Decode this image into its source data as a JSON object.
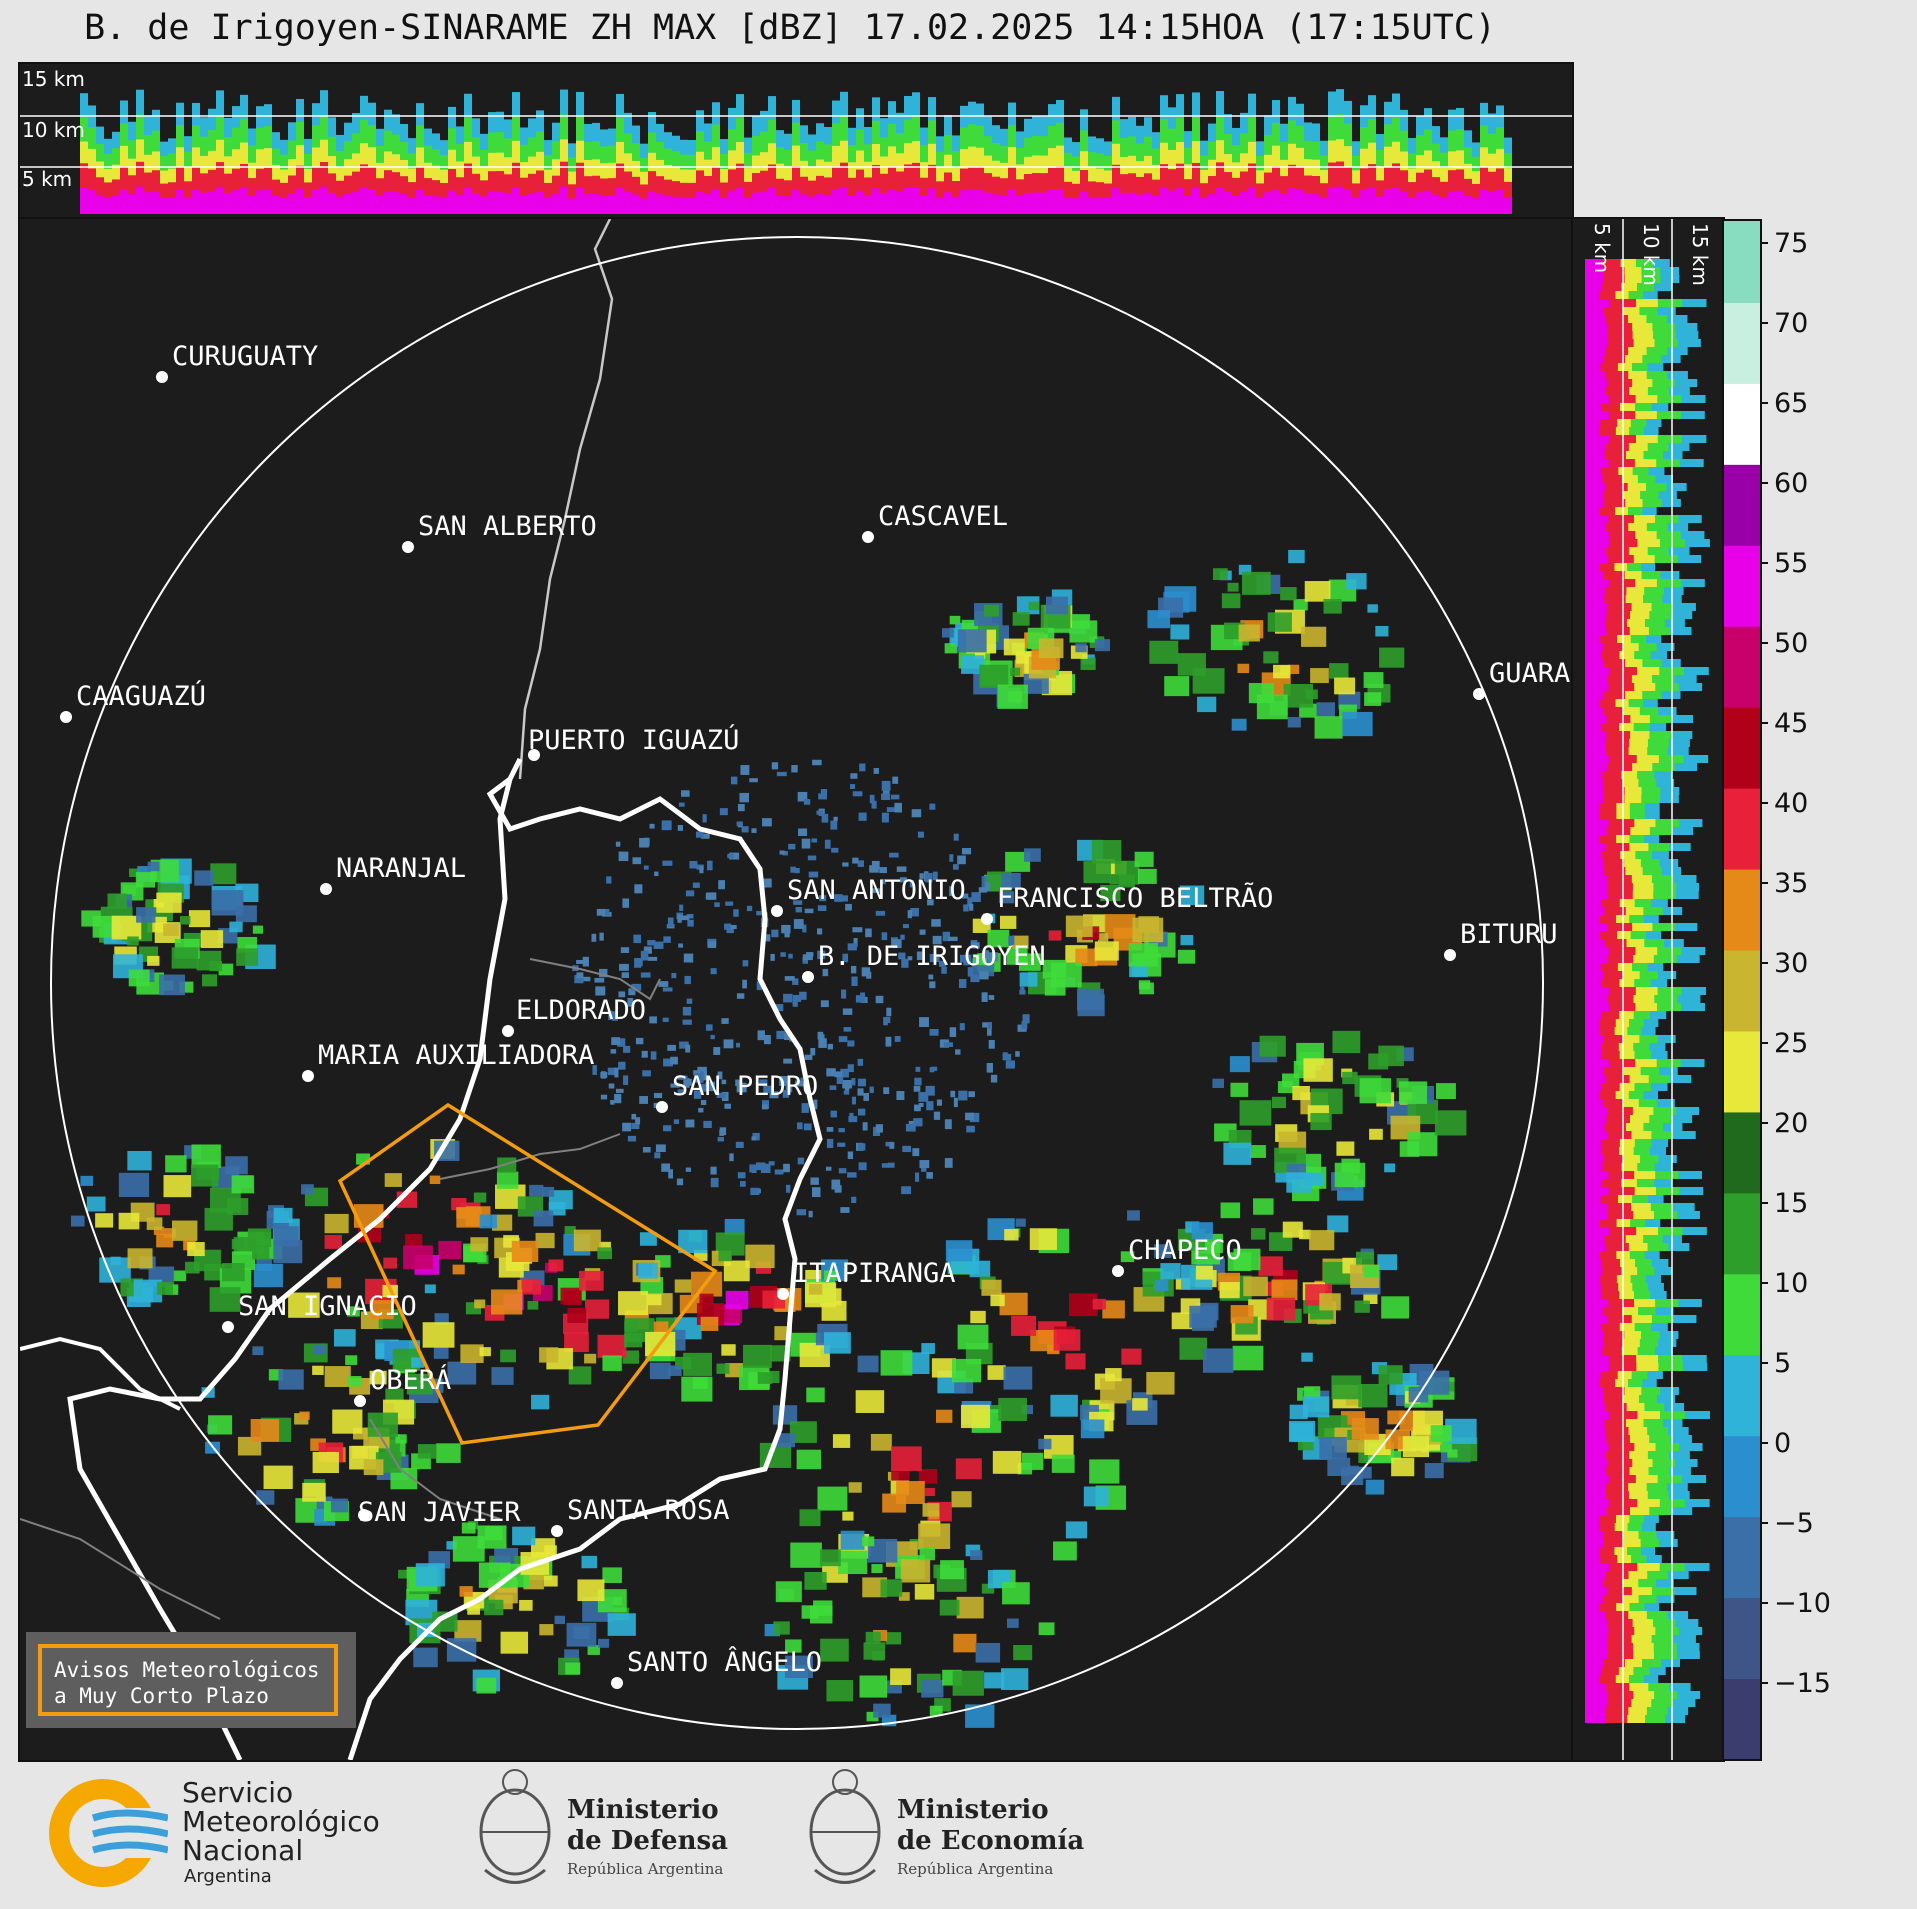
{
  "title": "B. de Irigoyen-SINARAME ZH MAX [dBZ] 17.02.2025 14:15HOA (17:15UTC)",
  "top_panel": {
    "km_labels": [
      "15 km",
      "10 km",
      "5 km"
    ]
  },
  "side_panel": {
    "km_labels": [
      "5 km",
      "10 km",
      "15 km"
    ]
  },
  "cities": [
    {
      "name": "CURUGUATY"
    },
    {
      "name": "SAN ALBERTO"
    },
    {
      "name": "CASCAVEL"
    },
    {
      "name": "CAAGUAZÚ"
    },
    {
      "name": "GUARA"
    },
    {
      "name": "PUERTO IGUAZÚ"
    },
    {
      "name": "NARANJAL"
    },
    {
      "name": "SAN ANTONIO"
    },
    {
      "name": "FRANCISCO BELTRÃO"
    },
    {
      "name": "B. DE IRIGOYEN"
    },
    {
      "name": "BITURU"
    },
    {
      "name": "ELDORADO"
    },
    {
      "name": "MARIA AUXILIADORA"
    },
    {
      "name": "SAN PEDRO"
    },
    {
      "name": "CHAPECO"
    },
    {
      "name": "ITAPIRANGA"
    },
    {
      "name": "SAN IGNACIO"
    },
    {
      "name": "OBERÁ"
    },
    {
      "name": "SAN JAVIER"
    },
    {
      "name": "SANTA ROSA"
    },
    {
      "name": "SANTO ÂNGELO"
    }
  ],
  "colorbar": {
    "unit": "dBZ",
    "ticks": [
      "75",
      "70",
      "65",
      "60",
      "55",
      "50",
      "45",
      "40",
      "35",
      "30",
      "25",
      "20",
      "15",
      "10",
      "5",
      "0",
      "−5",
      "−10",
      "−15"
    ],
    "stops": [
      {
        "color": "#3b3d6e"
      },
      {
        "color": "#3f5587"
      },
      {
        "color": "#3a6fa8"
      },
      {
        "color": "#2b8fcf"
      },
      {
        "color": "#2fb3d9"
      },
      {
        "color": "#3edb3a"
      },
      {
        "color": "#2e9e2a"
      },
      {
        "color": "#1f6a1c"
      },
      {
        "color": "#e8e83a"
      },
      {
        "color": "#c9b52f"
      },
      {
        "color": "#e58a18"
      },
      {
        "color": "#e8203a"
      },
      {
        "color": "#b0001a"
      },
      {
        "color": "#c8006a"
      },
      {
        "color": "#e800e8"
      },
      {
        "color": "#9a00a8"
      },
      {
        "color": "#ffffff"
      },
      {
        "color": "#c8efe0"
      },
      {
        "color": "#88dcc0"
      }
    ]
  },
  "warning_box": {
    "line1": "Avisos Meteorológicos",
    "line2": "a Muy Corto Plazo"
  },
  "logos": {
    "smn": {
      "line1": "Servicio",
      "line2": "Meteorológico",
      "line3": "Nacional",
      "line4": "Argentina"
    },
    "defensa": {
      "line1": "Ministerio",
      "line2": "de Defensa",
      "line3": "República Argentina"
    },
    "economia": {
      "line1": "Ministerio",
      "line2": "de Economía",
      "line3": "República Argentina"
    }
  }
}
